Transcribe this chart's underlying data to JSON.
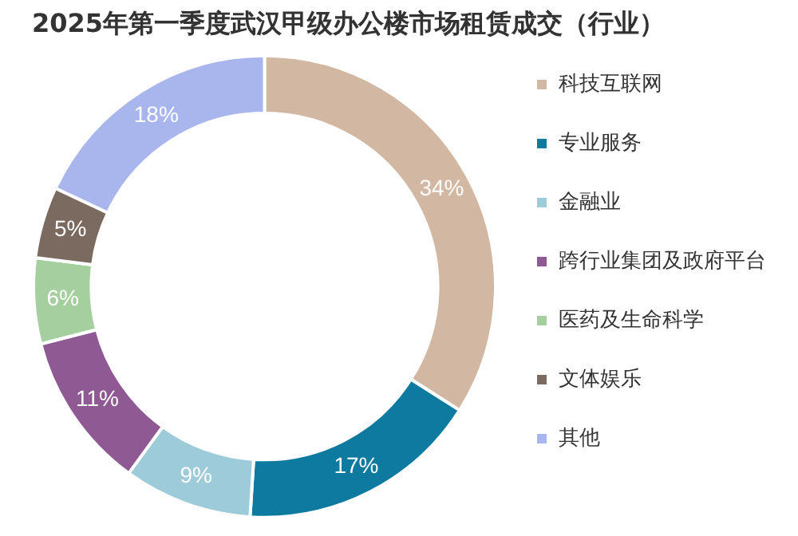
{
  "chart_data": {
    "type": "donut",
    "title": "2025年第一季度武汉甲级办公楼市场租赁成交（行业）",
    "categories": [
      "科技互联网",
      "专业服务",
      "金融业",
      "跨行业集团及政府平台",
      "医药及生命科学",
      "文体娱乐",
      "其他"
    ],
    "values": [
      34,
      17,
      9,
      11,
      6,
      5,
      18
    ],
    "colors": [
      "#d2b7a2",
      "#0f7aa0",
      "#9dcbd9",
      "#8f5a93",
      "#a5cf9f",
      "#7b6a5f",
      "#a9b6ee"
    ],
    "value_labels": [
      "34%",
      "17%",
      "9%",
      "11%",
      "6%",
      "5%",
      "18%"
    ],
    "legend": "right"
  }
}
